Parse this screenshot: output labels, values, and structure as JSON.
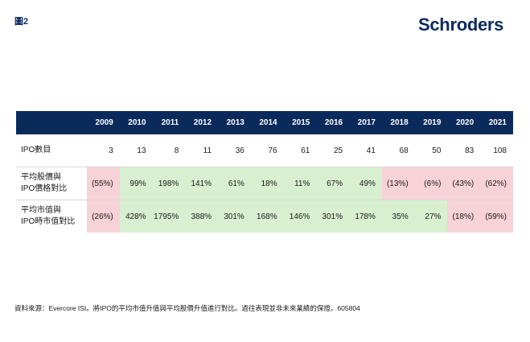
{
  "figure_label": "圖2",
  "logo_text": "Schroders",
  "years": [
    "2009",
    "2010",
    "2011",
    "2012",
    "2013",
    "2014",
    "2015",
    "2016",
    "2017",
    "2018",
    "2019",
    "2020",
    "2021"
  ],
  "rows": [
    {
      "label": [
        "IPO數目"
      ],
      "values": [
        "3",
        "13",
        "8",
        "11",
        "36",
        "76",
        "61",
        "25",
        "41",
        "68",
        "50",
        "83",
        "108"
      ],
      "shading": [
        "",
        "",
        "",
        "",
        "",
        "",
        "",
        "",
        "",
        "",
        "",
        "",
        ""
      ]
    },
    {
      "label": [
        "平均股價與",
        "IPO價格對比"
      ],
      "values": [
        "(55%)",
        "99%",
        "198%",
        "141%",
        "61%",
        "18%",
        "11%",
        "67%",
        "49%",
        "(13%)",
        "(6%)",
        "(43%)",
        "(62%)"
      ],
      "shading": [
        "neg",
        "pos",
        "pos",
        "pos",
        "pos",
        "pos",
        "pos",
        "pos",
        "pos",
        "neg",
        "neg",
        "neg",
        "neg"
      ]
    },
    {
      "label": [
        "平均市值與",
        "IPO時市值對比"
      ],
      "values": [
        "(26%)",
        "428%",
        "1795%",
        "388%",
        "301%",
        "168%",
        "146%",
        "301%",
        "178%",
        "35%",
        "27%",
        "(18%)",
        "(59%)"
      ],
      "shading": [
        "neg",
        "pos",
        "pos",
        "pos",
        "pos",
        "pos",
        "pos",
        "pos",
        "pos",
        "pos",
        "pos",
        "neg",
        "neg"
      ]
    }
  ],
  "colors": {
    "header_bg": "#0b2a5c",
    "positive_bg": "#d8efd0",
    "negative_bg": "#f7d2d6"
  },
  "footnote": "資料來源：Evercore ISI。將IPO的平均市值升值與平均股價升值進行對比。過往表現並非未來業績的保證。605804"
}
